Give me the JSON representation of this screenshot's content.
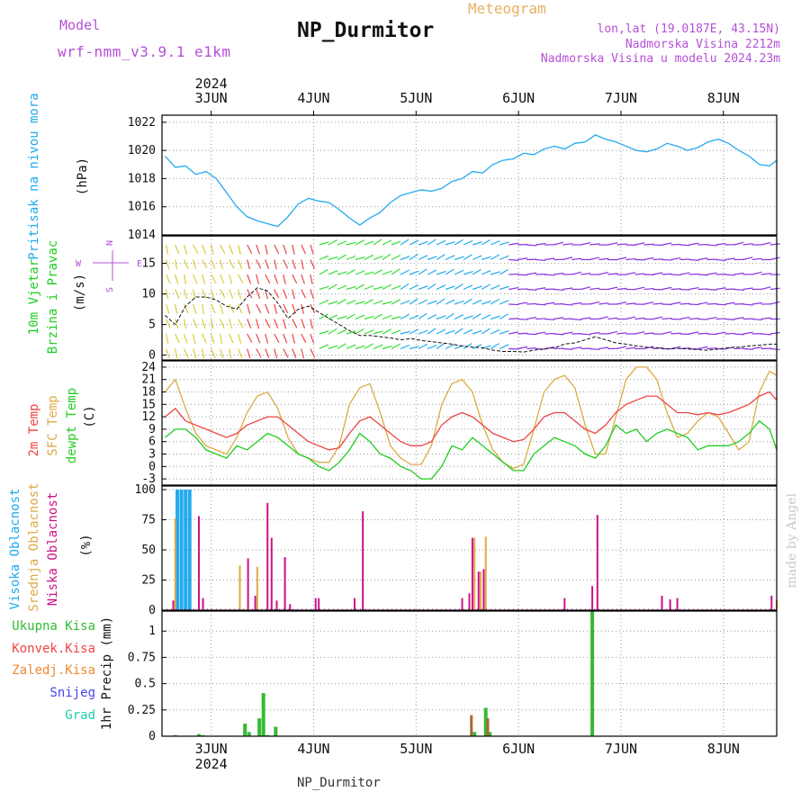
{
  "header": {
    "model_label": "Model",
    "model_name": "wrf-nmm_v3.9.1 e1km",
    "product": "Meteogram",
    "station": "NP_Durmitor",
    "lonlat": "lon,lat (19.0187E, 43.15N)",
    "elevation": "Nadmorska Visina 2212m",
    "model_elevation": "Nadmorska Visina u modelu 2024.23m",
    "footer_station": "NP_Durmitor",
    "watermark": "made by Angel"
  },
  "colors": {
    "pressure": "#22aaee",
    "temp2m": "#ee4444",
    "sfc_temp": "#ddaa44",
    "dewpoint": "#22cc22",
    "high_cloud": "#22aaee",
    "mid_cloud": "#ddaa44",
    "low_cloud": "#cc1188",
    "total_precip": "#33bb33",
    "conv_precip": "#ee4444",
    "frozen_precip": "#ee8833",
    "snow": "#4444ee",
    "hail": "#22ccaa",
    "label_purple": "#b44fd6"
  },
  "chart_data": [
    {
      "type": "line",
      "name": "pressure",
      "labels": [
        "Pritisak na nivou mora"
      ],
      "ylabel": "(hPa)",
      "ylim": [
        1014,
        1022.5
      ],
      "yticks": [
        1014,
        1016,
        1018,
        1020,
        1022
      ],
      "x_day_ticks": [
        "3JUN",
        "4JUN",
        "5JUN",
        "6JUN",
        "7JUN",
        "8JUN"
      ],
      "x_year": "2024",
      "xlim_days": [
        2.52,
        8.52
      ],
      "grid": true,
      "series": [
        {
          "name": "Pritisak na nivou mora",
          "x": [
            2.55,
            2.65,
            2.75,
            2.85,
            2.95,
            3.05,
            3.15,
            3.25,
            3.35,
            3.45,
            3.55,
            3.65,
            3.75,
            3.85,
            3.95,
            4.05,
            4.15,
            4.25,
            4.35,
            4.45,
            4.55,
            4.65,
            4.75,
            4.85,
            4.95,
            5.05,
            5.15,
            5.25,
            5.35,
            5.45,
            5.55,
            5.65,
            5.75,
            5.85,
            5.95,
            6.05,
            6.15,
            6.25,
            6.35,
            6.45,
            6.55,
            6.65,
            6.75,
            6.85,
            6.95,
            7.05,
            7.15,
            7.25,
            7.35,
            7.45,
            7.55,
            7.65,
            7.75,
            7.85,
            7.95,
            8.05,
            8.15,
            8.25,
            8.35,
            8.45,
            8.52
          ],
          "values": [
            1019.6,
            1018.8,
            1018.9,
            1018.3,
            1018.5,
            1018.0,
            1017.0,
            1016.0,
            1015.3,
            1015.0,
            1014.8,
            1014.6,
            1015.3,
            1016.2,
            1016.6,
            1016.4,
            1016.3,
            1015.8,
            1015.2,
            1014.7,
            1015.2,
            1015.6,
            1016.3,
            1016.8,
            1017.0,
            1017.2,
            1017.1,
            1017.3,
            1017.8,
            1018.0,
            1018.5,
            1018.4,
            1019.0,
            1019.3,
            1019.4,
            1019.8,
            1019.7,
            1020.1,
            1020.3,
            1020.1,
            1020.5,
            1020.6,
            1021.1,
            1020.8,
            1020.6,
            1020.3,
            1020.0,
            1019.9,
            1020.1,
            1020.5,
            1020.3,
            1020.0,
            1020.2,
            1020.6,
            1020.8,
            1020.5,
            1020.0,
            1019.6,
            1019.0,
            1018.9,
            1019.3
          ]
        }
      ]
    },
    {
      "type": "line",
      "name": "wind",
      "labels": [
        "10m Vjetar",
        "Brzina i Pravac"
      ],
      "ylabel": "(m/s)",
      "ylim": [
        -0.8,
        19.5
      ],
      "yticks": [
        0,
        5,
        10,
        15
      ],
      "compass_labels": [
        "N",
        "W",
        "E",
        "S"
      ],
      "grid": true,
      "series": [
        {
          "name": "Brzina",
          "x": [
            2.55,
            2.65,
            2.75,
            2.85,
            2.95,
            3.05,
            3.15,
            3.25,
            3.35,
            3.45,
            3.55,
            3.65,
            3.75,
            3.85,
            3.95,
            4.05,
            4.15,
            4.25,
            4.35,
            4.45,
            4.55,
            4.65,
            4.75,
            4.85,
            4.95,
            5.05,
            5.15,
            5.25,
            5.35,
            5.45,
            5.55,
            5.65,
            5.75,
            5.85,
            5.95,
            6.05,
            6.15,
            6.25,
            6.35,
            6.45,
            6.55,
            6.65,
            6.75,
            6.85,
            6.95,
            7.05,
            7.15,
            7.25,
            7.35,
            7.45,
            7.55,
            7.65,
            7.75,
            7.85,
            7.95,
            8.05,
            8.15,
            8.25,
            8.35,
            8.45,
            8.52
          ],
          "values": [
            6.5,
            5.0,
            8.0,
            9.5,
            9.5,
            9.0,
            8.0,
            7.5,
            9.5,
            11.0,
            10.5,
            8.5,
            6.0,
            7.5,
            8.0,
            7.0,
            6.0,
            5.0,
            4.0,
            3.2,
            3.2,
            3.0,
            2.8,
            2.5,
            2.7,
            2.4,
            2.2,
            2.0,
            1.8,
            1.5,
            1.3,
            1.2,
            0.8,
            0.6,
            0.6,
            0.5,
            0.8,
            1.0,
            1.2,
            1.8,
            2.0,
            2.5,
            3.0,
            2.5,
            2.0,
            1.8,
            1.5,
            1.3,
            1.2,
            1.0,
            1.1,
            1.0,
            0.9,
            0.8,
            1.0,
            1.2,
            1.3,
            1.5,
            1.6,
            1.8,
            1.8
          ]
        }
      ]
    },
    {
      "type": "line",
      "name": "temperature",
      "labels": [
        "2m Temp",
        "SFC Temp",
        "dewpt Temp"
      ],
      "ylabel": "(C)",
      "ylim": [
        -4.5,
        25.5
      ],
      "yticks": [
        -3,
        0,
        3,
        6,
        9,
        12,
        15,
        18,
        21,
        24
      ],
      "grid": true,
      "series": [
        {
          "name": "2m Temp",
          "x": [
            2.55,
            2.65,
            2.75,
            2.85,
            2.95,
            3.05,
            3.15,
            3.25,
            3.35,
            3.45,
            3.55,
            3.65,
            3.75,
            3.85,
            3.95,
            4.05,
            4.15,
            4.25,
            4.35,
            4.45,
            4.55,
            4.65,
            4.75,
            4.85,
            4.95,
            5.05,
            5.15,
            5.25,
            5.35,
            5.45,
            5.55,
            5.65,
            5.75,
            5.85,
            5.95,
            6.05,
            6.15,
            6.25,
            6.35,
            6.45,
            6.55,
            6.65,
            6.75,
            6.85,
            6.95,
            7.05,
            7.15,
            7.25,
            7.35,
            7.45,
            7.55,
            7.65,
            7.75,
            7.85,
            7.95,
            8.05,
            8.15,
            8.25,
            8.35,
            8.45,
            8.52
          ],
          "values": [
            12,
            14,
            11,
            10,
            9,
            8,
            7,
            8,
            10,
            11,
            12,
            12,
            10,
            8,
            6,
            5,
            4,
            4.5,
            8,
            11,
            12,
            10,
            8,
            6,
            5,
            5,
            6,
            10,
            12,
            13,
            12,
            10,
            8,
            7,
            6,
            6.5,
            9,
            12,
            13,
            13,
            11,
            9,
            8,
            10,
            13,
            15,
            16,
            17,
            17,
            15,
            13,
            13,
            12.5,
            13,
            12.5,
            13,
            14,
            15,
            17,
            18,
            16
          ]
        },
        {
          "name": "SFC Temp",
          "x": [
            2.55,
            2.65,
            2.75,
            2.85,
            2.95,
            3.05,
            3.15,
            3.25,
            3.35,
            3.45,
            3.55,
            3.65,
            3.75,
            3.85,
            3.95,
            4.05,
            4.15,
            4.25,
            4.35,
            4.45,
            4.55,
            4.65,
            4.75,
            4.85,
            4.95,
            5.05,
            5.15,
            5.25,
            5.35,
            5.45,
            5.55,
            5.65,
            5.75,
            5.85,
            5.95,
            6.05,
            6.15,
            6.25,
            6.35,
            6.45,
            6.55,
            6.65,
            6.75,
            6.85,
            6.95,
            7.05,
            7.15,
            7.25,
            7.35,
            7.45,
            7.55,
            7.65,
            7.75,
            7.85,
            7.95,
            8.05,
            8.15,
            8.25,
            8.35,
            8.45,
            8.52
          ],
          "values": [
            18,
            21,
            14,
            8,
            5,
            4,
            3,
            7,
            13,
            17,
            18,
            14,
            7,
            3,
            2,
            1,
            1,
            5,
            15,
            19,
            20,
            13,
            5,
            2,
            0.5,
            0.5,
            5,
            15,
            20,
            21,
            18,
            10,
            4,
            1,
            -0.5,
            0.5,
            9,
            18,
            21,
            22,
            19,
            10,
            3,
            3,
            12,
            21,
            24,
            24,
            21,
            13,
            7,
            8,
            11,
            13,
            12,
            8,
            4,
            6,
            18,
            23,
            22
          ]
        },
        {
          "name": "dewpt Temp",
          "x": [
            2.55,
            2.65,
            2.75,
            2.85,
            2.95,
            3.05,
            3.15,
            3.25,
            3.35,
            3.45,
            3.55,
            3.65,
            3.75,
            3.85,
            3.95,
            4.05,
            4.15,
            4.25,
            4.35,
            4.45,
            4.55,
            4.65,
            4.75,
            4.85,
            4.95,
            5.05,
            5.15,
            5.25,
            5.35,
            5.45,
            5.55,
            5.65,
            5.75,
            5.85,
            5.95,
            6.05,
            6.15,
            6.25,
            6.35,
            6.45,
            6.55,
            6.65,
            6.75,
            6.85,
            6.95,
            7.05,
            7.15,
            7.25,
            7.35,
            7.45,
            7.55,
            7.65,
            7.75,
            7.85,
            7.95,
            8.05,
            8.15,
            8.25,
            8.35,
            8.45,
            8.52
          ],
          "values": [
            7,
            9,
            9,
            7,
            4,
            3,
            2,
            5,
            4,
            6,
            8,
            7,
            5,
            3,
            2,
            0,
            -1,
            1,
            4,
            8,
            6,
            3,
            2,
            0,
            -1,
            -3,
            -3,
            0,
            5,
            4,
            7,
            5,
            3,
            1,
            -1,
            -1,
            3,
            5,
            7,
            6,
            5,
            3,
            2,
            5,
            10,
            8,
            9,
            6,
            8,
            9,
            8,
            7,
            4,
            5,
            5,
            5,
            6,
            8,
            11,
            9,
            4
          ]
        }
      ]
    },
    {
      "type": "bar",
      "name": "clouds",
      "labels": [
        "Visoka Oblacnost",
        "Srednja Oblacnost",
        "Niska Oblacnost"
      ],
      "ylabel": "(%)",
      "ylim": [
        0,
        103
      ],
      "yticks": [
        0,
        25,
        50,
        75,
        100
      ],
      "grid": true,
      "series": [
        {
          "name": "Visoka Oblacnost",
          "x": [
            2.67,
            2.71,
            2.75,
            2.79
          ],
          "values": [
            100,
            100,
            100,
            100
          ]
        },
        {
          "name": "Srednja Oblacnost",
          "x": [
            2.65,
            3.28,
            3.45,
            5.57,
            5.63,
            5.68,
            8.52
          ],
          "values": [
            76,
            37,
            36,
            60,
            32,
            61,
            8
          ]
        },
        {
          "name": "Niska Oblacnost",
          "x": [
            2.63,
            2.88,
            2.92,
            3.36,
            3.43,
            3.55,
            3.59,
            3.64,
            3.72,
            3.77,
            4.02,
            4.05,
            4.4,
            4.48,
            5.45,
            5.52,
            5.55,
            5.61,
            5.66,
            6.45,
            6.72,
            6.77,
            7.4,
            7.48,
            7.55,
            8.47
          ],
          "values": [
            8,
            78,
            10,
            43,
            12,
            89,
            60,
            8,
            44,
            5,
            10,
            10,
            10,
            82,
            10,
            14,
            60,
            32,
            34,
            10,
            20,
            79,
            12,
            9,
            10,
            12
          ]
        }
      ]
    },
    {
      "type": "bar",
      "name": "precipitation",
      "labels": [
        "Ukupna Kisa",
        "Konvek.Kisa",
        "Zaledj.Kisa",
        "Snijeg",
        "Grad"
      ],
      "ylabel": "1hr Precip (mm)",
      "ylim": [
        0,
        1.19
      ],
      "yticks": [
        0,
        0.25,
        0.5,
        0.75,
        1
      ],
      "x_day_ticks": [
        "3JUN",
        "4JUN",
        "5JUN",
        "6JUN",
        "7JUN",
        "8JUN"
      ],
      "x_year": "2024",
      "grid": true,
      "series": [
        {
          "name": "Ukupna Kisa",
          "x": [
            2.65,
            2.88,
            2.92,
            3.33,
            3.37,
            3.47,
            3.51,
            3.55,
            3.63,
            5.57,
            5.68,
            5.72,
            6.72
          ],
          "values": [
            0.01,
            0.02,
            0.01,
            0.12,
            0.04,
            0.17,
            0.41,
            0.01,
            0.09,
            0.04,
            0.27,
            0.04,
            1.19
          ]
        },
        {
          "name": "Konvek.Kisa",
          "x": [
            5.54,
            5.7
          ],
          "values": [
            0.2,
            0.17
          ]
        },
        {
          "name": "Zaledj.Kisa",
          "x": [],
          "values": []
        },
        {
          "name": "Snijeg",
          "x": [],
          "values": []
        },
        {
          "name": "Grad",
          "x": [],
          "values": []
        }
      ]
    }
  ]
}
